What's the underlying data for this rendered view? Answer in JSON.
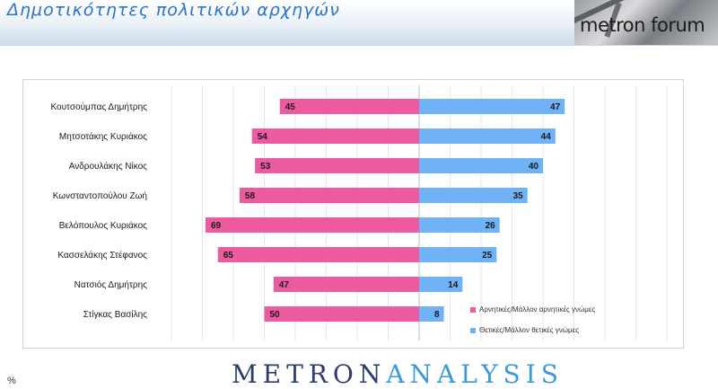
{
  "header": {
    "title": "Δημοτικότητες πολιτικών αρχηγών",
    "logo_text": "metron forum"
  },
  "footer": {
    "pct": "%",
    "logo_part1": "METRON",
    "logo_part2": "ANALYSIS"
  },
  "colors": {
    "negative": "#ec5b9f",
    "positive": "#6fb2f5"
  },
  "chart_data": {
    "type": "bar",
    "orientation": "horizontal-diverging",
    "categories": [
      "Κουτσούμπας Δημήτρης",
      "Μητσοτάκης Κυριάκος",
      "Ανδρουλάκης Νίκος",
      "Κωνσταντοπούλου Ζωή",
      "Βελόπουλος Κυριάκος",
      "Κασσελάκης Στέφανος",
      "Νατσιός Δημήτρης",
      "Στίγκας Βασίλης"
    ],
    "series": [
      {
        "name": "Αρνητικές/Μάλλον αρνητικές γνώμες",
        "values": [
          45,
          54,
          53,
          58,
          69,
          65,
          47,
          50
        ]
      },
      {
        "name": "Θετικές/Μάλλον θετικές γνώμες",
        "values": [
          47,
          44,
          40,
          35,
          26,
          25,
          14,
          8
        ]
      }
    ],
    "xlim": [
      -80,
      80
    ],
    "grid": true,
    "legend_position": "bottom-right"
  }
}
